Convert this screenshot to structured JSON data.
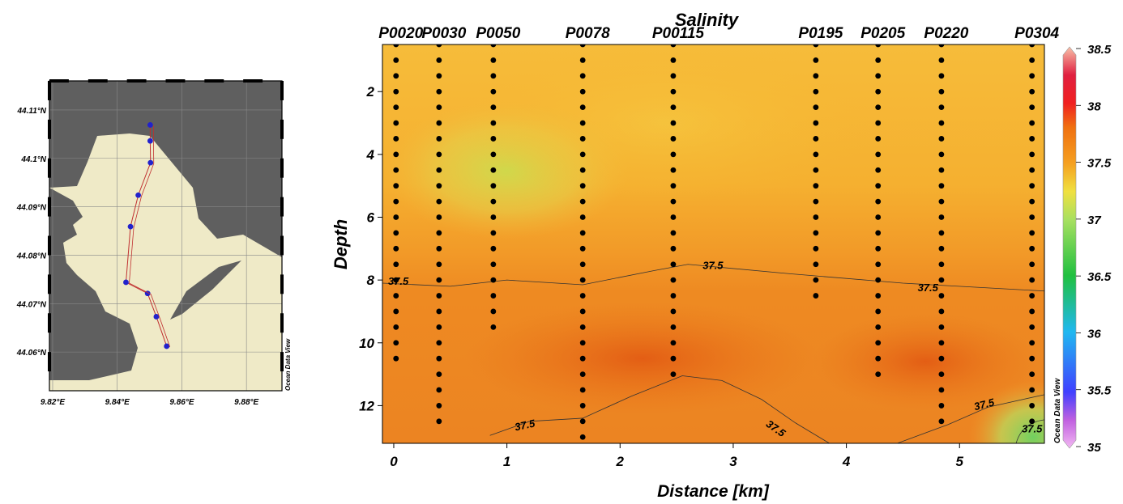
{
  "colors": {
    "land": "#5f5f5f",
    "sea": "#efeac7",
    "track": "#c03030",
    "station_dot": "#2222cc",
    "cast_dot": "#000000"
  },
  "map": {
    "watermark": "Ocean Data View",
    "lon_ticks": [
      "9.82°E",
      "9.84°E",
      "9.86°E",
      "9.88°E"
    ],
    "lat_ticks": [
      "44.11°N",
      "44.1°N",
      "44.09°N",
      "44.08°N",
      "44.07°N",
      "44.06°N"
    ],
    "lon_values": [
      9.82,
      9.84,
      9.86,
      9.88
    ],
    "lat_values": [
      44.11,
      44.1,
      44.09,
      44.08,
      44.07,
      44.06
    ],
    "lon_range": [
      9.819,
      9.891
    ],
    "lat_range": [
      44.052,
      44.116
    ],
    "stations": [
      {
        "lon": 9.8502,
        "lat": 44.1069
      },
      {
        "lon": 9.8502,
        "lat": 44.1036
      },
      {
        "lon": 9.8503,
        "lat": 44.0991
      },
      {
        "lon": 9.8465,
        "lat": 44.0924
      },
      {
        "lon": 9.8441,
        "lat": 44.0859
      },
      {
        "lon": 9.8427,
        "lat": 44.0744
      },
      {
        "lon": 9.8494,
        "lat": 44.0721
      },
      {
        "lon": 9.8521,
        "lat": 44.0673
      },
      {
        "lon": 9.8553,
        "lat": 44.0612
      }
    ]
  },
  "chart_data": {
    "type": "heatmap",
    "title": "Salinity",
    "xlabel": "Distance [km]",
    "ylabel": "Depth",
    "xlim": [
      -0.1,
      5.75
    ],
    "ylim": [
      13.2,
      0.5
    ],
    "x_ticks": [
      0,
      1,
      2,
      3,
      4,
      5
    ],
    "y_ticks": [
      2,
      4,
      6,
      8,
      10,
      12
    ],
    "watermark": "Ocean Data View",
    "colorbar": {
      "min": 35,
      "max": 38.5,
      "ticks": [
        38.5,
        38,
        37.5,
        37,
        36.5,
        36,
        35.5,
        35
      ]
    },
    "stations": [
      {
        "name": "P0020",
        "distance": 0.02,
        "max_depth": 10.6
      },
      {
        "name": "P0030",
        "distance": 0.4,
        "max_depth": 12.5
      },
      {
        "name": "P0050",
        "distance": 0.88,
        "max_depth": 9.8
      },
      {
        "name": "P0078",
        "distance": 1.67,
        "max_depth": 13.2
      },
      {
        "name": "P00115",
        "distance": 2.47,
        "max_depth": 11.3
      },
      {
        "name": "P0195",
        "distance": 3.73,
        "max_depth": 8.6
      },
      {
        "name": "P0205",
        "distance": 4.28,
        "max_depth": 11.3
      },
      {
        "name": "P0220",
        "distance": 4.84,
        "max_depth": 12.5
      },
      {
        "name": "P0304",
        "distance": 5.64,
        "max_depth": 12.8
      }
    ],
    "contours": [
      {
        "level": 37.5,
        "label": "37.5",
        "points": [
          [
            -0.1,
            8.1
          ],
          [
            0.5,
            8.2
          ],
          [
            1.0,
            8.0
          ],
          [
            1.67,
            8.15
          ],
          [
            2.3,
            7.7
          ],
          [
            2.6,
            7.5
          ],
          [
            3.5,
            7.8
          ],
          [
            4.5,
            8.1
          ],
          [
            5.75,
            8.35
          ]
        ]
      },
      {
        "level": 37.5,
        "label": "37.5",
        "points": [
          [
            0.85,
            12.95
          ],
          [
            1.2,
            12.5
          ],
          [
            1.67,
            12.4
          ],
          [
            2.1,
            11.7
          ],
          [
            2.55,
            11.05
          ],
          [
            2.9,
            11.2
          ],
          [
            3.25,
            11.8
          ],
          [
            3.55,
            12.55
          ],
          [
            3.85,
            13.2
          ]
        ]
      },
      {
        "level": 37.5,
        "label": "37.5",
        "points": [
          [
            4.45,
            13.2
          ],
          [
            4.9,
            12.6
          ],
          [
            5.25,
            12.05
          ],
          [
            5.75,
            11.65
          ]
        ]
      },
      {
        "level": 37.5,
        "label": "37.5",
        "points": []
      }
    ],
    "contour_labels": [
      {
        "text": "37.5",
        "x": -0.05,
        "y": 8.05
      },
      {
        "text": "37.5",
        "x": 2.73,
        "y": 7.55
      },
      {
        "text": "37.5",
        "x": 4.63,
        "y": 8.25
      },
      {
        "text": "37.5",
        "x": 1.07,
        "y": 12.7
      },
      {
        "text": "37.5",
        "x": 3.3,
        "y": 12.55
      },
      {
        "text": "37.5",
        "x": 5.13,
        "y": 12.05
      },
      {
        "text": "37.5",
        "x": 5.55,
        "y": 12.75
      }
    ],
    "salinity_field": {
      "comment_free": true,
      "background": 37.4,
      "blobs": [
        {
          "x": 1.0,
          "y": 4.5,
          "value": 37.15
        },
        {
          "x": 2.4,
          "y": 3.0,
          "value": 37.3
        },
        {
          "x": 4.7,
          "y": 10.6,
          "value": 37.85
        },
        {
          "x": 2.2,
          "y": 10.5,
          "value": 37.7
        },
        {
          "x": 5.65,
          "y": 13.0,
          "value": 37.0
        }
      ]
    }
  }
}
